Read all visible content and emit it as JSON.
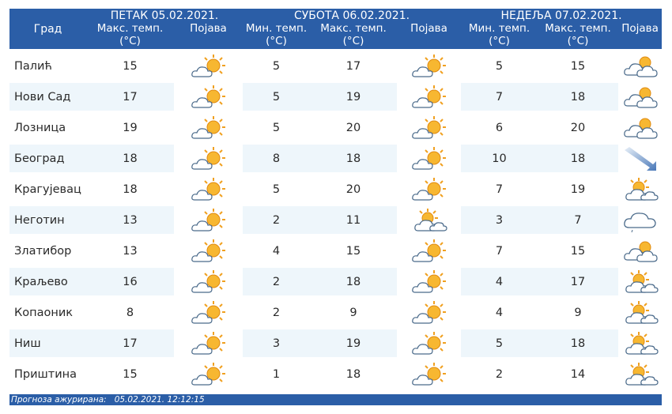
{
  "header": {
    "city_label": "Град",
    "days": [
      {
        "title": "ПЕТАК  05.02.2021."
      },
      {
        "title": "СУБОТА  06.02.2021."
      },
      {
        "title": "НЕДЕЉА  07.02.2021."
      }
    ],
    "max_temp": "Макс. темп.",
    "min_temp": "Мин. темп.",
    "unit": "(°C)",
    "phenomenon": "Појава"
  },
  "rows": [
    {
      "city": "Палић",
      "d1": {
        "max": "15",
        "icon": "sun-cloud"
      },
      "d2": {
        "min": "5",
        "max": "17",
        "icon": "sun-cloud"
      },
      "d3": {
        "min": "5",
        "max": "15",
        "icon": "cloudy-sun"
      }
    },
    {
      "city": "Нови Сад",
      "d1": {
        "max": "17",
        "icon": "sun-cloud"
      },
      "d2": {
        "min": "5",
        "max": "19",
        "icon": "sun-cloud"
      },
      "d3": {
        "min": "7",
        "max": "18",
        "icon": "cloudy-sun"
      }
    },
    {
      "city": "Лозница",
      "d1": {
        "max": "19",
        "icon": "sun-cloud"
      },
      "d2": {
        "min": "5",
        "max": "20",
        "icon": "sun-cloud"
      },
      "d3": {
        "min": "6",
        "max": "20",
        "icon": "cloudy-sun"
      }
    },
    {
      "city": "Београд",
      "d1": {
        "max": "18",
        "icon": "sun-cloud"
      },
      "d2": {
        "min": "8",
        "max": "18",
        "icon": "sun-cloud"
      },
      "d3": {
        "min": "10",
        "max": "18",
        "icon": "wind"
      }
    },
    {
      "city": "Крагујевац",
      "d1": {
        "max": "18",
        "icon": "sun-cloud"
      },
      "d2": {
        "min": "5",
        "max": "20",
        "icon": "sun-cloud"
      },
      "d3": {
        "min": "7",
        "max": "19",
        "icon": "cloud-sun"
      }
    },
    {
      "city": "Неготин",
      "d1": {
        "max": "13",
        "icon": "sun-cloud"
      },
      "d2": {
        "min": "2",
        "max": "11",
        "icon": "cloud-sun"
      },
      "d3": {
        "min": "3",
        "max": "7",
        "icon": "cloud-drizzle"
      }
    },
    {
      "city": "Златибор",
      "d1": {
        "max": "13",
        "icon": "sun-cloud"
      },
      "d2": {
        "min": "4",
        "max": "15",
        "icon": "sun-cloud"
      },
      "d3": {
        "min": "7",
        "max": "15",
        "icon": "cloudy-sun"
      }
    },
    {
      "city": "Краљево",
      "d1": {
        "max": "16",
        "icon": "sun-cloud"
      },
      "d2": {
        "min": "2",
        "max": "18",
        "icon": "sun-cloud"
      },
      "d3": {
        "min": "4",
        "max": "17",
        "icon": "cloud-sun"
      }
    },
    {
      "city": "Копаоник",
      "d1": {
        "max": "8",
        "icon": "sun-cloud"
      },
      "d2": {
        "min": "2",
        "max": "9",
        "icon": "sun-cloud"
      },
      "d3": {
        "min": "4",
        "max": "9",
        "icon": "cloud-sun"
      }
    },
    {
      "city": "Ниш",
      "d1": {
        "max": "17",
        "icon": "sun-cloud"
      },
      "d2": {
        "min": "3",
        "max": "19",
        "icon": "sun-cloud"
      },
      "d3": {
        "min": "5",
        "max": "18",
        "icon": "cloud-sun"
      }
    },
    {
      "city": "Приштина",
      "d1": {
        "max": "15",
        "icon": "sun-cloud"
      },
      "d2": {
        "min": "1",
        "max": "18",
        "icon": "sun-cloud"
      },
      "d3": {
        "min": "2",
        "max": "14",
        "icon": "cloud-sun"
      }
    }
  ],
  "footer": {
    "label": "Прогноза ажурирана:",
    "timestamp": "05.02.2021. 12:12:15"
  },
  "colors": {
    "header_bg": "#2b5ea7",
    "row_alt": "#eef6fb",
    "sun": "#f5a623",
    "cloud": "#ffffff"
  }
}
